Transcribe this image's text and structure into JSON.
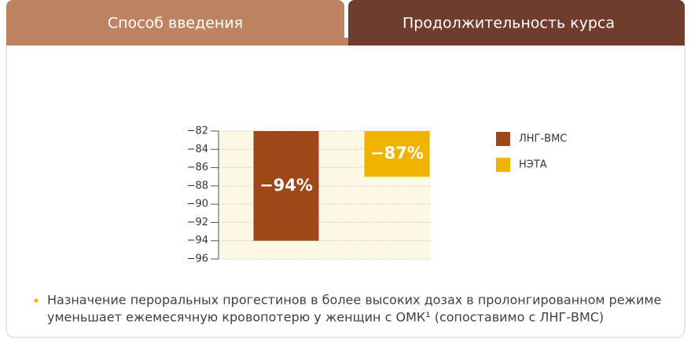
{
  "tabs": [
    "Способ введения",
    "Продолжительность курса"
  ],
  "chart_data": {
    "type": "bar",
    "categories": [
      null
    ],
    "series": [
      {
        "name": "ЛНГ-ВМС",
        "color": "#9e4819",
        "values": [
          -94
        ],
        "value_labels": [
          "−94%"
        ]
      },
      {
        "name": "НЭТА",
        "color": "#f0b400",
        "values": [
          -87
        ],
        "value_labels": [
          "−87%"
        ]
      }
    ],
    "ylim": [
      -96,
      -82
    ],
    "yticks": [
      {
        "value": -82,
        "label": "−82"
      },
      {
        "value": -84,
        "label": "−84"
      },
      {
        "value": -86,
        "label": "−86"
      },
      {
        "value": -88,
        "label": "−88"
      },
      {
        "value": -90,
        "label": "−90"
      },
      {
        "value": -92,
        "label": "−92"
      },
      {
        "value": -94,
        "label": "−94"
      },
      {
        "value": -96,
        "label": "−96"
      }
    ],
    "grid": true,
    "legend": "right"
  },
  "note": {
    "lines": [
      "Назначение пероральных прогестинов в более высоких дозах в пролонгированном режиме",
      "уменьшает ежемесячную кровопотерю у женщин с ОМК¹ (сопоставимо с ЛНГ-ВМС)"
    ]
  }
}
